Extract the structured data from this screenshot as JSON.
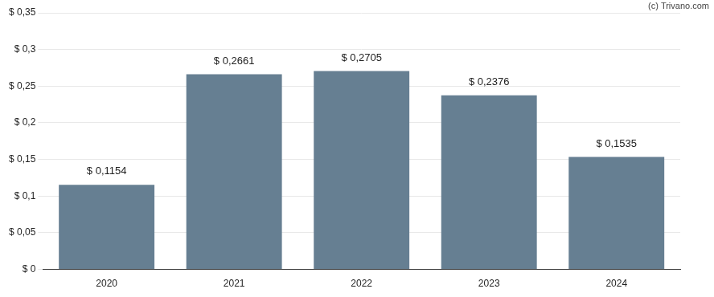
{
  "chart_data": {
    "type": "bar",
    "annotations": [
      "(c) Trivano.com"
    ],
    "categories": [
      "2020",
      "2021",
      "2022",
      "2023",
      "2024"
    ],
    "values": [
      0.1154,
      0.2661,
      0.2705,
      0.2376,
      0.1535
    ],
    "value_labels": [
      "$ 0,1154",
      "$ 0,2661",
      "$ 0,2705",
      "$ 0,2376",
      "$ 0,1535"
    ],
    "data_labels": true,
    "color": "#667f92",
    "ylim": [
      0,
      0.35
    ],
    "yticks": [
      {
        "value": 0,
        "label": "$ 0"
      },
      {
        "value": 0.05,
        "label": "$ 0,05"
      },
      {
        "value": 0.1,
        "label": "$ 0,1"
      },
      {
        "value": 0.15,
        "label": "$ 0,15"
      },
      {
        "value": 0.2,
        "label": "$ 0,2"
      },
      {
        "value": 0.25,
        "label": "$ 0,25"
      },
      {
        "value": 0.3,
        "label": "$ 0,3"
      },
      {
        "value": 0.35,
        "label": "$ 0,35"
      }
    ],
    "grid": true
  }
}
